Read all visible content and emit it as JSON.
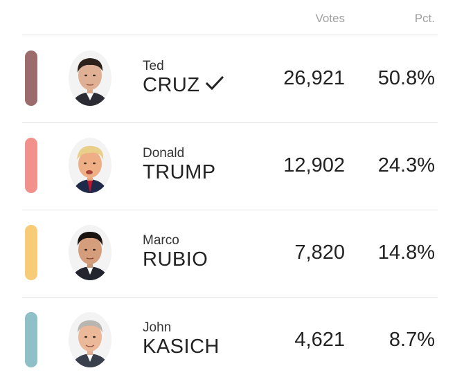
{
  "header": {
    "votes_label": "Votes",
    "pct_label": "Pct."
  },
  "candidates": [
    {
      "first_name": "Ted",
      "last_name": "CRUZ",
      "votes": "26,921",
      "pct": "50.8%",
      "winner": true,
      "color": "#9c6b6b",
      "photo_icon": "candidate-photo-cruz"
    },
    {
      "first_name": "Donald",
      "last_name": "TRUMP",
      "votes": "12,902",
      "pct": "24.3%",
      "winner": false,
      "color": "#f2908c",
      "photo_icon": "candidate-photo-trump"
    },
    {
      "first_name": "Marco",
      "last_name": "RUBIO",
      "votes": "7,820",
      "pct": "14.8%",
      "winner": false,
      "color": "#f8cb76",
      "photo_icon": "candidate-photo-rubio"
    },
    {
      "first_name": "John",
      "last_name": "KASICH",
      "votes": "4,621",
      "pct": "8.7%",
      "winner": false,
      "color": "#8fbfc7",
      "photo_icon": "candidate-photo-kasich"
    }
  ]
}
